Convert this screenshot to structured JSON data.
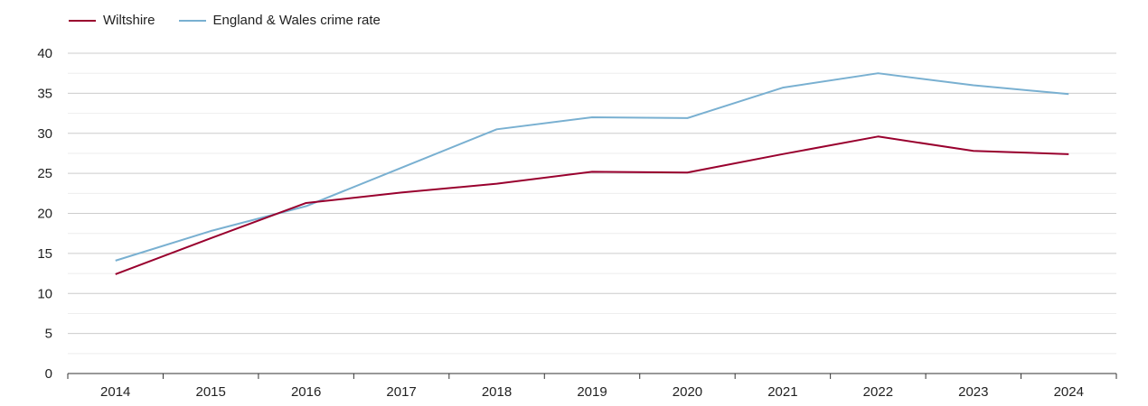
{
  "chart_data": {
    "type": "line",
    "title": "",
    "xlabel": "",
    "ylabel": "",
    "x": [
      "2014",
      "2015",
      "2016",
      "2017",
      "2018",
      "2019",
      "2020",
      "2021",
      "2022",
      "2023",
      "2024"
    ],
    "ylim": [
      0,
      40
    ],
    "yticks": [
      0,
      5,
      10,
      15,
      20,
      25,
      30,
      35,
      40
    ],
    "grid": true,
    "legend_position": "top-left",
    "series": [
      {
        "name": "Wiltshire",
        "color": "#99002e",
        "values": [
          12.4,
          16.9,
          21.3,
          22.6,
          23.7,
          25.2,
          25.1,
          27.4,
          29.6,
          27.8,
          27.4
        ]
      },
      {
        "name": "England & Wales crime rate",
        "color": "#79b0d1",
        "values": [
          14.1,
          17.8,
          20.9,
          25.7,
          30.5,
          32.0,
          31.9,
          35.7,
          37.5,
          36.0,
          34.9
        ]
      }
    ]
  }
}
